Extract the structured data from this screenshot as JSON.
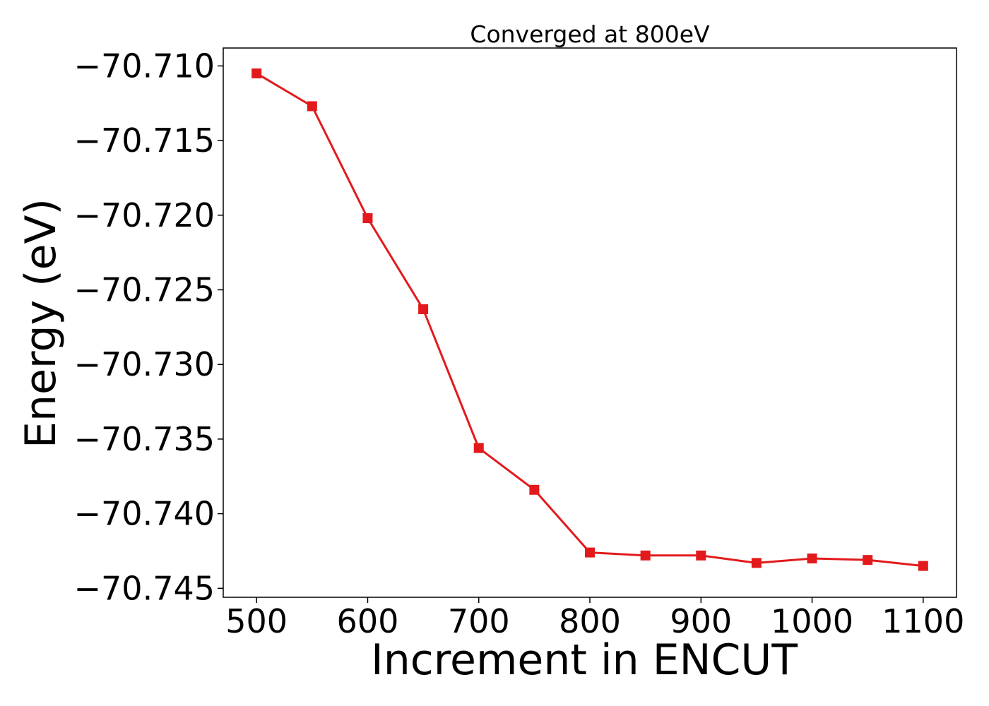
{
  "chart_data": {
    "type": "line",
    "title": "Converged at 800eV",
    "xlabel": "Increment in ENCUT",
    "ylabel": "Energy (eV)",
    "xlim": [
      470,
      1130
    ],
    "ylim": [
      -70.7456,
      -70.7088
    ],
    "xticks": [
      500,
      600,
      700,
      800,
      900,
      1000,
      1100
    ],
    "xtick_labels": [
      "500",
      "600",
      "700",
      "800",
      "900",
      "1000",
      "1100"
    ],
    "yticks": [
      -70.71,
      -70.715,
      -70.72,
      -70.725,
      -70.73,
      -70.735,
      -70.74,
      -70.745
    ],
    "ytick_labels": [
      "−70.710",
      "−70.715",
      "−70.720",
      "−70.725",
      "−70.730",
      "−70.735",
      "−70.740",
      "−70.745"
    ],
    "grid": false,
    "series": [
      {
        "color": "#e31a1c",
        "marker": "square",
        "x": [
          500,
          550,
          600,
          650,
          700,
          750,
          800,
          850,
          900,
          950,
          1000,
          1050,
          1100
        ],
        "y": [
          -70.7105,
          -70.7127,
          -70.7202,
          -70.7263,
          -70.7356,
          -70.7384,
          -70.7426,
          -70.7428,
          -70.7428,
          -70.7433,
          -70.743,
          -70.7431,
          -70.7435
        ]
      }
    ]
  }
}
